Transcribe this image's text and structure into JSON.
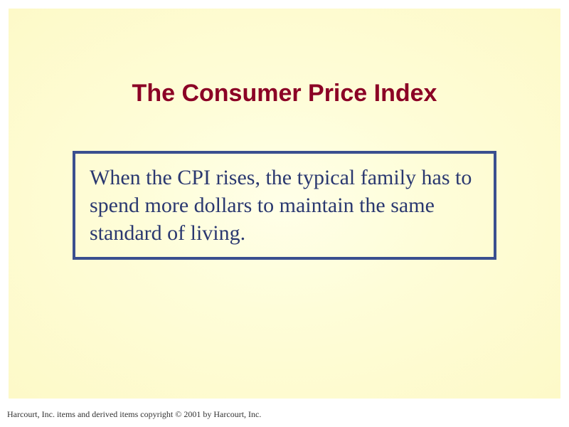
{
  "slide": {
    "title": "The Consumer Price Index",
    "body_text": "When the CPI rises, the typical family has to spend more dollars to maintain the same standard of living.",
    "footer": "Harcourt, Inc. items and derived items copyright © 2001 by Harcourt, Inc."
  },
  "style": {
    "title_color": "#8b0025",
    "title_fontsize": 34,
    "title_font": "Arial",
    "body_color": "#2a3870",
    "body_fontsize": 30,
    "body_font": "Times New Roman",
    "box_border_color": "#3a4f8f",
    "box_border_width": 4,
    "background_gradient_inner": "#ffffe8",
    "background_gradient_outer": "#fdf9c8",
    "footer_fontsize": 12,
    "footer_color": "#333333",
    "slide_width": 800,
    "slide_height": 600
  }
}
